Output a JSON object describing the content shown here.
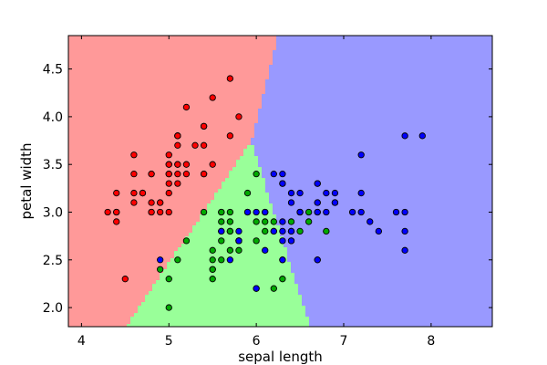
{
  "chart_data": {
    "type": "scatter",
    "title": "",
    "xlabel": "sepal length",
    "ylabel": "petal width",
    "xlim": [
      3.85,
      8.7
    ],
    "ylim": [
      1.8,
      4.85
    ],
    "x_ticks": [
      4,
      5,
      6,
      7,
      8
    ],
    "y_ticks": [
      2.0,
      2.5,
      3.0,
      3.5,
      4.0,
      4.5
    ],
    "x_tick_labels": [
      "4",
      "5",
      "6",
      "7",
      "8"
    ],
    "y_tick_labels": [
      "2.0",
      "2.5",
      "3.0",
      "3.5",
      "4.0",
      "4.5"
    ],
    "grid": false,
    "legend": "none",
    "regions": [
      {
        "class": 0,
        "color": "#ff9999"
      },
      {
        "class": 1,
        "color": "#99ff99"
      },
      {
        "class": 2,
        "color": "#9999ff"
      }
    ],
    "series": [
      {
        "class": 0,
        "color": "#ff0000",
        "points": [
          [
            5.1,
            3.5
          ],
          [
            4.9,
            3.0
          ],
          [
            4.7,
            3.2
          ],
          [
            4.6,
            3.1
          ],
          [
            5.0,
            3.6
          ],
          [
            5.4,
            3.9
          ],
          [
            4.6,
            3.4
          ],
          [
            5.0,
            3.4
          ],
          [
            4.4,
            2.9
          ],
          [
            4.9,
            3.1
          ],
          [
            5.4,
            3.7
          ],
          [
            4.8,
            3.4
          ],
          [
            4.8,
            3.0
          ],
          [
            4.3,
            3.0
          ],
          [
            5.8,
            4.0
          ],
          [
            5.7,
            4.4
          ],
          [
            5.4,
            3.9
          ],
          [
            5.1,
            3.5
          ],
          [
            5.7,
            3.8
          ],
          [
            5.1,
            3.8
          ],
          [
            5.4,
            3.4
          ],
          [
            5.1,
            3.7
          ],
          [
            4.6,
            3.6
          ],
          [
            5.1,
            3.3
          ],
          [
            4.8,
            3.4
          ],
          [
            5.0,
            3.0
          ],
          [
            5.0,
            3.4
          ],
          [
            5.2,
            3.5
          ],
          [
            5.2,
            3.4
          ],
          [
            4.7,
            3.2
          ],
          [
            4.8,
            3.1
          ],
          [
            5.4,
            3.4
          ],
          [
            5.2,
            4.1
          ],
          [
            5.5,
            4.2
          ],
          [
            4.9,
            3.1
          ],
          [
            5.0,
            3.2
          ],
          [
            5.5,
            3.5
          ],
          [
            4.4,
            3.0
          ],
          [
            5.1,
            3.4
          ],
          [
            5.0,
            3.5
          ],
          [
            4.5,
            2.3
          ],
          [
            4.4,
            3.2
          ],
          [
            5.0,
            3.5
          ],
          [
            5.1,
            3.8
          ],
          [
            4.8,
            3.0
          ],
          [
            5.1,
            3.8
          ],
          [
            4.6,
            3.2
          ],
          [
            5.3,
            3.7
          ],
          [
            5.0,
            3.3
          ],
          [
            4.4,
            3.0
          ]
        ]
      },
      {
        "class": 1,
        "color": "#00aa00",
        "points": [
          [
            5.5,
            2.3
          ],
          [
            5.7,
            2.8
          ],
          [
            6.3,
            3.3
          ],
          [
            4.9,
            2.4
          ],
          [
            6.6,
            2.9
          ],
          [
            5.2,
            2.7
          ],
          [
            5.0,
            2.0
          ],
          [
            5.9,
            3.0
          ],
          [
            6.0,
            2.2
          ],
          [
            6.1,
            2.9
          ],
          [
            5.6,
            2.9
          ],
          [
            5.6,
            3.0
          ],
          [
            5.8,
            2.7
          ],
          [
            6.2,
            2.2
          ],
          [
            5.6,
            2.5
          ],
          [
            5.9,
            3.2
          ],
          [
            6.3,
            2.5
          ],
          [
            6.1,
            2.8
          ],
          [
            6.4,
            2.9
          ],
          [
            6.6,
            3.0
          ],
          [
            6.8,
            2.8
          ],
          [
            6.7,
            3.0
          ],
          [
            6.0,
            2.9
          ],
          [
            5.7,
            2.6
          ],
          [
            5.5,
            2.4
          ],
          [
            5.5,
            2.4
          ],
          [
            5.8,
            2.7
          ],
          [
            6.0,
            2.7
          ],
          [
            5.4,
            3.0
          ],
          [
            6.0,
            3.4
          ],
          [
            6.7,
            3.1
          ],
          [
            6.3,
            2.3
          ],
          [
            5.6,
            3.0
          ],
          [
            5.5,
            2.5
          ],
          [
            5.5,
            2.6
          ],
          [
            6.1,
            3.0
          ],
          [
            5.8,
            2.6
          ],
          [
            5.0,
            2.3
          ],
          [
            5.6,
            2.7
          ],
          [
            5.7,
            3.0
          ],
          [
            5.7,
            2.9
          ],
          [
            6.2,
            2.9
          ],
          [
            5.1,
            2.5
          ],
          [
            5.7,
            2.8
          ],
          [
            6.9,
            3.1
          ],
          [
            6.5,
            2.8
          ],
          [
            6.2,
            2.8
          ],
          [
            6.4,
            2.7
          ],
          [
            5.6,
            2.8
          ],
          [
            6.7,
            2.5
          ]
        ]
      },
      {
        "class": 2,
        "color": "#0000ff",
        "points": [
          [
            6.3,
            3.3
          ],
          [
            5.8,
            2.7
          ],
          [
            7.1,
            3.0
          ],
          [
            6.3,
            2.9
          ],
          [
            6.5,
            3.0
          ],
          [
            7.6,
            3.0
          ],
          [
            4.9,
            2.5
          ],
          [
            7.3,
            2.9
          ],
          [
            6.7,
            2.5
          ],
          [
            7.2,
            3.6
          ],
          [
            6.5,
            3.2
          ],
          [
            6.4,
            2.7
          ],
          [
            6.8,
            3.0
          ],
          [
            5.7,
            2.5
          ],
          [
            5.8,
            2.8
          ],
          [
            6.4,
            3.2
          ],
          [
            6.5,
            3.0
          ],
          [
            7.7,
            3.8
          ],
          [
            7.7,
            2.6
          ],
          [
            6.0,
            2.2
          ],
          [
            6.9,
            3.2
          ],
          [
            5.6,
            2.8
          ],
          [
            7.7,
            2.8
          ],
          [
            6.3,
            2.7
          ],
          [
            6.7,
            3.3
          ],
          [
            7.2,
            3.2
          ],
          [
            6.2,
            2.8
          ],
          [
            6.1,
            3.0
          ],
          [
            6.4,
            2.8
          ],
          [
            7.2,
            3.0
          ],
          [
            7.4,
            2.8
          ],
          [
            7.9,
            3.8
          ],
          [
            6.4,
            2.8
          ],
          [
            6.3,
            2.8
          ],
          [
            6.1,
            2.6
          ],
          [
            7.7,
            3.0
          ],
          [
            6.3,
            3.4
          ],
          [
            6.4,
            3.1
          ],
          [
            6.0,
            3.0
          ],
          [
            6.9,
            3.1
          ],
          [
            6.7,
            3.1
          ],
          [
            6.9,
            3.1
          ],
          [
            5.8,
            2.7
          ],
          [
            6.8,
            3.2
          ],
          [
            6.7,
            3.3
          ],
          [
            6.7,
            3.0
          ],
          [
            6.3,
            2.5
          ],
          [
            6.5,
            3.0
          ],
          [
            6.2,
            3.4
          ],
          [
            5.9,
            3.0
          ]
        ]
      }
    ]
  }
}
